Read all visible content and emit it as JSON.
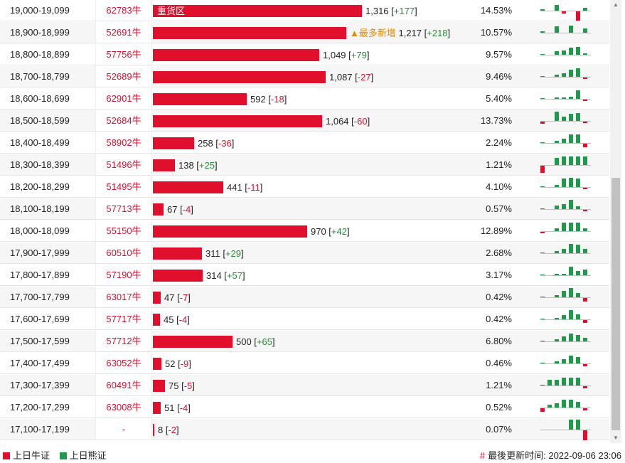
{
  "rows": [
    {
      "range": "19,000-19,099",
      "code": "62783牛",
      "value": 1316,
      "value_text": "1,316",
      "change": "+177",
      "change_sign": "pos",
      "badge": "重货区",
      "pct": "14.53%",
      "spark": [
        2,
        0,
        8,
        -3,
        0,
        -13,
        4
      ]
    },
    {
      "range": "18,900-18,999",
      "code": "52691牛",
      "value": 1217,
      "value_text": "1,217",
      "change": "+218",
      "change_sign": "pos",
      "note": "▲最多新增",
      "pct": "10.57%",
      "spark": [
        2,
        0,
        9,
        0,
        10,
        0,
        6
      ]
    },
    {
      "range": "18,800-18,899",
      "code": "57756牛",
      "value": 1049,
      "value_text": "1,049",
      "change": "+79",
      "change_sign": "pos",
      "pct": "9.57%",
      "spark": [
        1,
        0,
        5,
        6,
        10,
        11,
        2
      ]
    },
    {
      "range": "18,700-18,799",
      "code": "52689牛",
      "value": 1087,
      "value_text": "1,087",
      "change": "-27",
      "change_sign": "neg",
      "pct": "9.46%",
      "spark": [
        1,
        0,
        3,
        5,
        10,
        12,
        -2
      ]
    },
    {
      "range": "18,600-18,699",
      "code": "62901牛",
      "value": 592,
      "value_text": "592",
      "change": "-18",
      "change_sign": "neg",
      "pct": "5.40%",
      "spark": [
        1,
        0,
        2,
        2,
        3,
        12,
        -2
      ]
    },
    {
      "range": "18,500-18,599",
      "code": "52684牛",
      "value": 1064,
      "value_text": "1,064",
      "change": "-60",
      "change_sign": "neg",
      "pct": "13.73%",
      "spark": [
        -3,
        0,
        13,
        6,
        10,
        11,
        -2
      ]
    },
    {
      "range": "18,400-18,499",
      "code": "58902牛",
      "value": 258,
      "value_text": "258",
      "change": "-36",
      "change_sign": "neg",
      "pct": "2.24%",
      "spark": [
        1,
        0,
        3,
        6,
        12,
        12,
        -5
      ]
    },
    {
      "range": "18,300-18,399",
      "code": "51496牛",
      "value": 138,
      "value_text": "138",
      "change": "+25",
      "change_sign": "pos",
      "pct": "1.21%",
      "spark": [
        -10,
        0,
        10,
        12,
        12,
        12,
        12
      ]
    },
    {
      "range": "18,200-18,299",
      "code": "51495牛",
      "value": 441,
      "value_text": "441",
      "change": "-11",
      "change_sign": "neg",
      "pct": "4.10%",
      "spark": [
        1,
        0,
        3,
        12,
        13,
        12,
        -2
      ]
    },
    {
      "range": "18,100-18,199",
      "code": "57713牛",
      "value": 67,
      "value_text": "67",
      "change": "-4",
      "change_sign": "neg",
      "pct": "0.57%",
      "spark": [
        1,
        0,
        5,
        7,
        13,
        4,
        -2
      ]
    },
    {
      "range": "18,000-18,099",
      "code": "55150牛",
      "value": 970,
      "value_text": "970",
      "change": "+42",
      "change_sign": "pos",
      "pct": "12.89%",
      "spark": [
        -2,
        0,
        4,
        12,
        12,
        12,
        4
      ]
    },
    {
      "range": "17,900-17,999",
      "code": "60510牛",
      "value": 311,
      "value_text": "311",
      "change": "+29",
      "change_sign": "pos",
      "pct": "2.68%",
      "spark": [
        1,
        0,
        3,
        6,
        13,
        12,
        6
      ]
    },
    {
      "range": "17,800-17,899",
      "code": "57190牛",
      "value": 314,
      "value_text": "314",
      "change": "+57",
      "change_sign": "pos",
      "pct": "3.17%",
      "spark": [
        1,
        0,
        2,
        2,
        12,
        6,
        8
      ]
    },
    {
      "range": "17,700-17,799",
      "code": "63017牛",
      "value": 47,
      "value_text": "47",
      "change": "-7",
      "change_sign": "neg",
      "pct": "0.42%",
      "spark": [
        1,
        0,
        3,
        9,
        13,
        6,
        -5
      ]
    },
    {
      "range": "17,600-17,699",
      "code": "57717牛",
      "value": 45,
      "value_text": "45",
      "change": "-4",
      "change_sign": "neg",
      "pct": "0.42%",
      "spark": [
        1,
        0,
        2,
        6,
        13,
        7,
        -4
      ]
    },
    {
      "range": "17,500-17,599",
      "code": "57712牛",
      "value": 500,
      "value_text": "500",
      "change": "+65",
      "change_sign": "pos",
      "pct": "6.80%",
      "spark": [
        1,
        0,
        3,
        7,
        11,
        9,
        5
      ]
    },
    {
      "range": "17,400-17,499",
      "code": "63052牛",
      "value": 52,
      "value_text": "52",
      "change": "-9",
      "change_sign": "neg",
      "pct": "0.46%",
      "spark": [
        1,
        0,
        3,
        6,
        11,
        9,
        -3
      ]
    },
    {
      "range": "17,300-17,399",
      "code": "60491牛",
      "value": 75,
      "value_text": "75",
      "change": "-5",
      "change_sign": "neg",
      "pct": "1.21%",
      "spark": [
        1,
        8,
        8,
        11,
        11,
        11,
        -3
      ]
    },
    {
      "range": "17,200-17,299",
      "code": "63008牛",
      "value": 51,
      "value_text": "51",
      "change": "-4",
      "change_sign": "neg",
      "pct": "0.52%",
      "spark": [
        -5,
        4,
        6,
        11,
        11,
        8,
        -3
      ]
    },
    {
      "range": "17,100-17,199",
      "code": "-",
      "value": 8,
      "value_text": "8",
      "change": "-2",
      "change_sign": "neg",
      "pct": "0.07%",
      "spark": [
        0,
        0,
        0,
        0,
        14,
        14,
        -14
      ]
    }
  ],
  "max_value": 1316,
  "colors": {
    "bull": "#e0102d",
    "bear": "#1f9a4a",
    "note": "#e08a00"
  },
  "legend": {
    "bull_label": "上日牛证",
    "bear_label": "上日熊证"
  },
  "footer": {
    "update_label": "最後更新时间: 2022-09-06 23:06",
    "hash": "#"
  }
}
